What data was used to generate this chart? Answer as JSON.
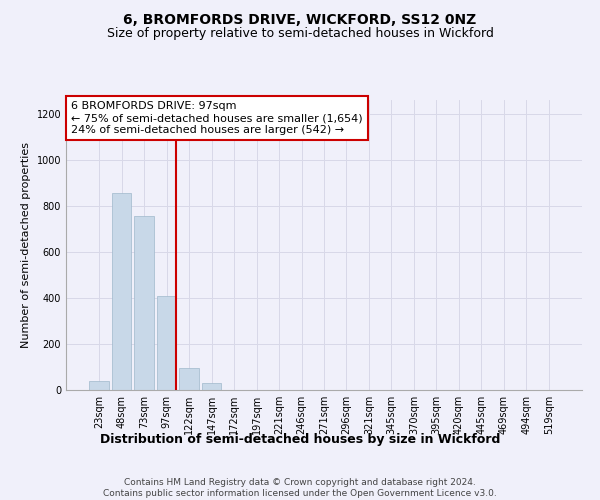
{
  "title": "6, BROMFORDS DRIVE, WICKFORD, SS12 0NZ",
  "subtitle": "Size of property relative to semi-detached houses in Wickford",
  "xlabel": "Distribution of semi-detached houses by size in Wickford",
  "ylabel": "Number of semi-detached properties",
  "categories": [
    "23sqm",
    "48sqm",
    "73sqm",
    "97sqm",
    "122sqm",
    "147sqm",
    "172sqm",
    "197sqm",
    "221sqm",
    "246sqm",
    "271sqm",
    "296sqm",
    "321sqm",
    "345sqm",
    "370sqm",
    "395sqm",
    "420sqm",
    "445sqm",
    "469sqm",
    "494sqm",
    "519sqm"
  ],
  "values": [
    40,
    855,
    755,
    410,
    95,
    30,
    0,
    0,
    0,
    0,
    0,
    0,
    0,
    0,
    0,
    0,
    0,
    0,
    0,
    0,
    0
  ],
  "bar_color": "#c8d8e8",
  "bar_edge_color": "#a0b8cc",
  "red_line_bar_index": 3,
  "annotation_text_line1": "6 BROMFORDS DRIVE: 97sqm",
  "annotation_text_line2": "← 75% of semi-detached houses are smaller (1,654)",
  "annotation_text_line3": "24% of semi-detached houses are larger (542) →",
  "annotation_box_color": "#ffffff",
  "annotation_box_edge_color": "#cc0000",
  "ylim": [
    0,
    1260
  ],
  "yticks": [
    0,
    200,
    400,
    600,
    800,
    1000,
    1200
  ],
  "grid_color": "#d8d8e8",
  "background_color": "#f0f0fa",
  "footer": "Contains HM Land Registry data © Crown copyright and database right 2024.\nContains public sector information licensed under the Open Government Licence v3.0.",
  "title_fontsize": 10,
  "subtitle_fontsize": 9,
  "xlabel_fontsize": 9,
  "ylabel_fontsize": 8,
  "tick_fontsize": 7,
  "annotation_fontsize": 8,
  "footer_fontsize": 6.5
}
